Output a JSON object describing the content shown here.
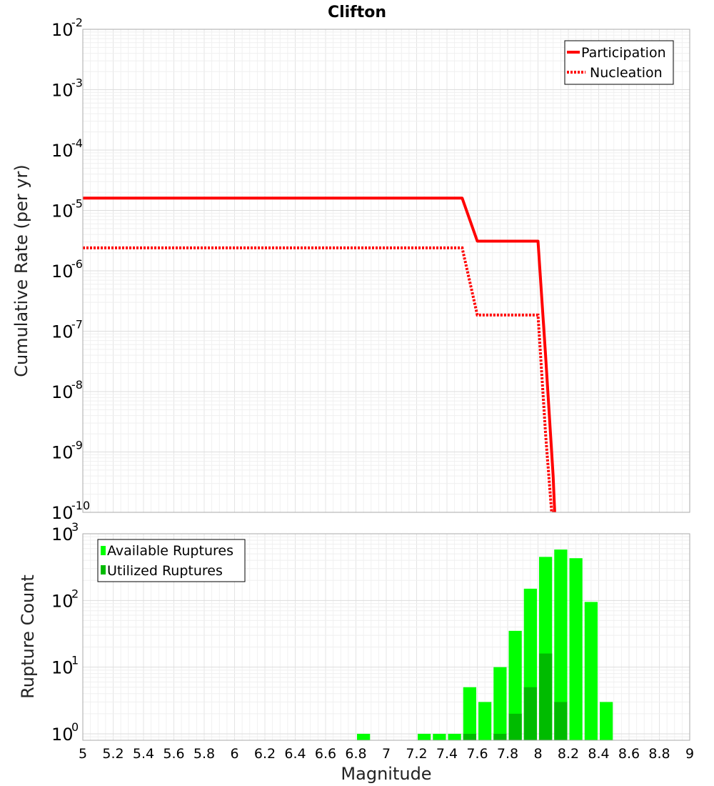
{
  "chart_data": [
    {
      "type": "line",
      "title": "Clifton",
      "xlabel": "",
      "ylabel": "Cumulative Rate (per yr)",
      "xlim": [
        5,
        9
      ],
      "ylim": [
        1e-10,
        0.01
      ],
      "yscale": "log",
      "yticks": [
        {
          "base": "10",
          "exp": "-2"
        },
        {
          "base": "10",
          "exp": "-3"
        },
        {
          "base": "10",
          "exp": "-4"
        },
        {
          "base": "10",
          "exp": "-5"
        },
        {
          "base": "10",
          "exp": "-6"
        },
        {
          "base": "10",
          "exp": "-7"
        },
        {
          "base": "10",
          "exp": "-8"
        },
        {
          "base": "10",
          "exp": "-9"
        },
        {
          "base": "10",
          "exp": "-10"
        }
      ],
      "grid": true,
      "legend_position": "top-right",
      "series": [
        {
          "name": "Participation",
          "color": "#ff0000",
          "style": "solid",
          "x": [
            5.0,
            7.5,
            7.6,
            8.0,
            8.05,
            8.1,
            8.11
          ],
          "y": [
            1.6e-05,
            1.6e-05,
            3.1e-06,
            3.1e-06,
            4e-08,
            4e-10,
            1e-10
          ]
        },
        {
          "name": "Nucleation",
          "color": "#ff0000",
          "style": "dotted",
          "x": [
            5.0,
            7.5,
            7.6,
            8.0,
            8.05,
            8.09,
            8.1
          ],
          "y": [
            2.4e-06,
            2.4e-06,
            1.85e-07,
            1.85e-07,
            2e-09,
            1e-10,
            1e-10
          ]
        }
      ]
    },
    {
      "type": "bar",
      "title": "",
      "xlabel": "Magnitude",
      "ylabel": "Rupture Count",
      "xlim": [
        5,
        9
      ],
      "ylim": [
        0.8,
        1000
      ],
      "yscale": "log",
      "bin_width": 0.1,
      "yticks": [
        {
          "base": "10",
          "exp": "3"
        },
        {
          "base": "10",
          "exp": "2"
        },
        {
          "base": "10",
          "exp": "1"
        },
        {
          "base": "10",
          "exp": "0"
        }
      ],
      "xticks": [
        "5",
        "5.2",
        "5.4",
        "5.6",
        "5.8",
        "6",
        "6.2",
        "6.4",
        "6.6",
        "6.8",
        "7",
        "7.2",
        "7.4",
        "7.6",
        "7.8",
        "8",
        "8.2",
        "8.4",
        "8.6",
        "8.8",
        "9"
      ],
      "grid": true,
      "legend_position": "top-left",
      "series": [
        {
          "name": "Available Ruptures",
          "color": "#00ff00",
          "bins": [
            6.85,
            7.25,
            7.35,
            7.45,
            7.55,
            7.65,
            7.75,
            7.85,
            7.95,
            8.05,
            8.15,
            8.25,
            8.35,
            8.45
          ],
          "values": [
            1,
            1,
            1,
            1,
            5,
            3,
            10,
            35,
            150,
            450,
            580,
            430,
            95,
            3
          ]
        },
        {
          "name": "Utilized Ruptures",
          "color": "#00bb00",
          "bins": [
            7.55,
            7.75,
            7.85,
            7.95,
            8.05,
            8.15
          ],
          "values": [
            1,
            1,
            2,
            5,
            16,
            3
          ]
        }
      ]
    }
  ]
}
